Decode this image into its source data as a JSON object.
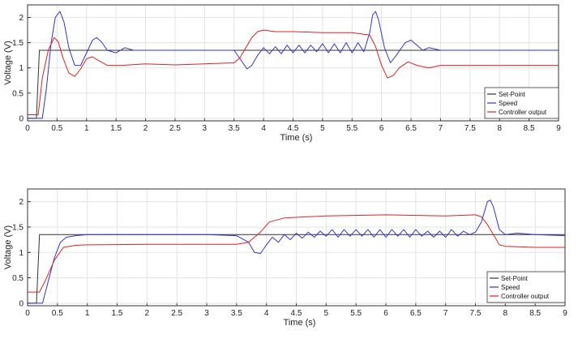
{
  "chart_data": [
    {
      "type": "line",
      "xlabel": "Time (s)",
      "ylabel": "Voltage (V)",
      "xlim": [
        0,
        9
      ],
      "ylim": [
        -0.05,
        2.25
      ],
      "x_ticks": [
        "0",
        "0.5",
        "1",
        "1.5",
        "2",
        "2.5",
        "3",
        "3.5",
        "4",
        "4.5",
        "5",
        "5.5",
        "6",
        "6.5",
        "7",
        "7.5",
        "8",
        "8.5",
        "9"
      ],
      "y_ticks": [
        "0",
        "0.5",
        "1",
        "1.5",
        "2"
      ],
      "grid": true,
      "legend_position": "bottom-right",
      "colors": {
        "Set-Point": "#333333",
        "Speed": "#3333cc",
        "Controller output": "#e02020"
      },
      "series": [
        {
          "name": "Set-Point",
          "x": [
            0,
            0.15,
            0.2,
            9
          ],
          "y": [
            0,
            0,
            1.35,
            1.35
          ]
        },
        {
          "name": "Speed",
          "x": [
            0,
            0.25,
            0.32,
            0.4,
            0.47,
            0.55,
            0.62,
            0.7,
            0.8,
            0.9,
            1.0,
            1.1,
            1.17,
            1.25,
            1.35,
            1.5,
            1.65,
            1.8,
            2.0,
            2.5,
            3.0,
            3.5,
            3.65,
            3.72,
            3.8,
            3.9,
            4.0,
            4.1,
            4.2,
            4.3,
            4.4,
            4.5,
            4.6,
            4.7,
            4.8,
            4.9,
            5.0,
            5.1,
            5.2,
            5.3,
            5.4,
            5.5,
            5.6,
            5.7,
            5.8,
            5.85,
            5.9,
            5.95,
            6.05,
            6.15,
            6.25,
            6.4,
            6.5,
            6.6,
            6.7,
            6.8,
            7.0,
            7.5,
            8.0,
            8.5,
            9.0
          ],
          "y": [
            0,
            0,
            0.6,
            1.5,
            2.0,
            2.12,
            1.9,
            1.4,
            1.05,
            1.05,
            1.3,
            1.55,
            1.6,
            1.52,
            1.35,
            1.3,
            1.4,
            1.35,
            1.35,
            1.35,
            1.35,
            1.35,
            1.1,
            0.98,
            1.05,
            1.25,
            1.4,
            1.28,
            1.42,
            1.28,
            1.45,
            1.3,
            1.45,
            1.3,
            1.45,
            1.32,
            1.48,
            1.3,
            1.48,
            1.3,
            1.5,
            1.3,
            1.5,
            1.32,
            1.7,
            2.05,
            2.12,
            1.95,
            1.4,
            1.1,
            1.25,
            1.5,
            1.55,
            1.45,
            1.35,
            1.4,
            1.35,
            1.35,
            1.35,
            1.35,
            1.35
          ]
        },
        {
          "name": "Controller output",
          "x": [
            0,
            0.18,
            0.25,
            0.35,
            0.45,
            0.52,
            0.6,
            0.7,
            0.8,
            0.9,
            1.0,
            1.1,
            1.2,
            1.35,
            1.6,
            2.0,
            2.5,
            3.0,
            3.5,
            3.6,
            3.7,
            3.8,
            3.9,
            4.0,
            4.2,
            4.5,
            5.0,
            5.5,
            5.8,
            5.9,
            6.0,
            6.1,
            6.2,
            6.3,
            6.45,
            6.6,
            6.8,
            7.0,
            7.5,
            8.0,
            9.0
          ],
          "y": [
            0.07,
            0.07,
            0.8,
            1.35,
            1.6,
            1.52,
            1.2,
            0.9,
            0.83,
            0.98,
            1.18,
            1.22,
            1.15,
            1.05,
            1.05,
            1.08,
            1.06,
            1.08,
            1.1,
            1.2,
            1.4,
            1.6,
            1.72,
            1.75,
            1.72,
            1.72,
            1.7,
            1.7,
            1.65,
            1.42,
            1.05,
            0.8,
            0.85,
            1.0,
            1.12,
            1.05,
            1.0,
            1.05,
            1.05,
            1.05,
            1.05
          ]
        }
      ]
    },
    {
      "type": "line",
      "xlabel": "Time (s)",
      "ylabel": "Voltage (V)",
      "xlim": [
        0,
        9
      ],
      "ylim": [
        -0.05,
        2.25
      ],
      "x_ticks": [
        "0",
        "0.5",
        "1",
        "1.5",
        "2",
        "2.5",
        "3",
        "3.5",
        "4",
        "4.5",
        "5",
        "5.5",
        "6",
        "6.5",
        "7",
        "7.5",
        "8",
        "8.5",
        "9"
      ],
      "y_ticks": [
        "0",
        "0.5",
        "1",
        "1.5",
        "2"
      ],
      "grid": true,
      "legend_position": "bottom-right",
      "colors": {
        "Set-Point": "#333333",
        "Speed": "#3333cc",
        "Controller output": "#e02020"
      },
      "series": [
        {
          "name": "Set-Point",
          "x": [
            0,
            0.15,
            0.2,
            9
          ],
          "y": [
            0,
            0,
            1.35,
            1.35
          ]
        },
        {
          "name": "Speed",
          "x": [
            0,
            0.25,
            0.35,
            0.45,
            0.55,
            0.65,
            0.8,
            1.0,
            1.5,
            2.0,
            2.5,
            3.0,
            3.5,
            3.7,
            3.8,
            3.9,
            4.0,
            4.1,
            4.2,
            4.3,
            4.4,
            4.5,
            4.6,
            4.7,
            4.8,
            4.9,
            5.0,
            5.1,
            5.2,
            5.3,
            5.4,
            5.5,
            5.6,
            5.7,
            5.8,
            5.9,
            6.0,
            6.1,
            6.2,
            6.3,
            6.4,
            6.5,
            6.6,
            6.7,
            6.8,
            6.9,
            7.0,
            7.1,
            7.2,
            7.3,
            7.4,
            7.5,
            7.6,
            7.7,
            7.75,
            7.8,
            7.9,
            8.0,
            8.2,
            8.5,
            9.0
          ],
          "y": [
            0,
            0,
            0.45,
            0.9,
            1.2,
            1.3,
            1.33,
            1.35,
            1.35,
            1.35,
            1.35,
            1.35,
            1.33,
            1.2,
            1.0,
            0.98,
            1.15,
            1.3,
            1.2,
            1.35,
            1.25,
            1.38,
            1.28,
            1.4,
            1.3,
            1.42,
            1.32,
            1.45,
            1.3,
            1.45,
            1.32,
            1.45,
            1.32,
            1.45,
            1.3,
            1.45,
            1.3,
            1.45,
            1.32,
            1.45,
            1.3,
            1.45,
            1.32,
            1.42,
            1.3,
            1.42,
            1.3,
            1.45,
            1.32,
            1.42,
            1.35,
            1.4,
            1.6,
            2.0,
            2.03,
            1.9,
            1.45,
            1.35,
            1.38,
            1.35,
            1.33
          ]
        },
        {
          "name": "Controller output",
          "x": [
            0,
            0.2,
            0.3,
            0.45,
            0.6,
            0.8,
            1.0,
            2.0,
            3.0,
            3.5,
            3.7,
            3.9,
            4.05,
            4.3,
            5.0,
            6.0,
            7.0,
            7.5,
            7.6,
            7.7,
            7.8,
            7.9,
            8.0,
            8.5,
            9.0
          ],
          "y": [
            0.22,
            0.22,
            0.45,
            0.85,
            1.1,
            1.14,
            1.15,
            1.16,
            1.16,
            1.16,
            1.2,
            1.4,
            1.6,
            1.68,
            1.72,
            1.74,
            1.72,
            1.74,
            1.7,
            1.55,
            1.35,
            1.15,
            1.12,
            1.1,
            1.1
          ]
        }
      ]
    }
  ]
}
